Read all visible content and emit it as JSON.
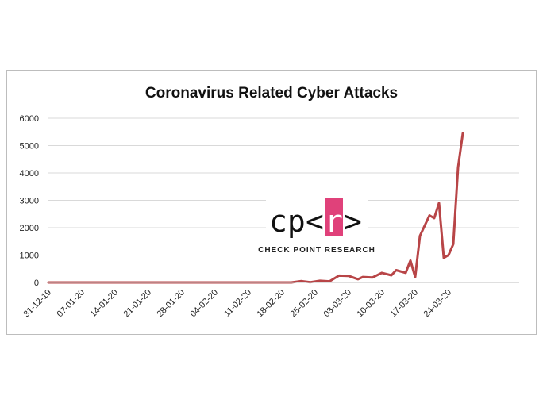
{
  "chart_data": {
    "type": "line",
    "title": "Coronavirus Related Cyber Attacks",
    "ylim": [
      0,
      6000
    ],
    "yticks": [
      "0",
      "1000",
      "2000",
      "3000",
      "4000",
      "5000",
      "6000"
    ],
    "xticks": [
      "31-12-19",
      "07-01-20",
      "14-01-20",
      "21-01-20",
      "28-01-20",
      "04-02-20",
      "11-02-20",
      "18-02-20",
      "25-02-20",
      "03-03-20",
      "10-03-20",
      "17-03-20",
      "24-03-20"
    ],
    "series": [
      {
        "color": "#b84547",
        "points": [
          [
            "31-12-19",
            0
          ],
          [
            "07-01-20",
            0
          ],
          [
            "14-01-20",
            0
          ],
          [
            "21-01-20",
            0
          ],
          [
            "28-01-20",
            0
          ],
          [
            "04-02-20",
            0
          ],
          [
            "11-02-20",
            0
          ],
          [
            "18-02-20",
            0
          ],
          [
            "20-02-20",
            0
          ],
          [
            "22-02-20",
            50
          ],
          [
            "24-02-20",
            10
          ],
          [
            "26-02-20",
            60
          ],
          [
            "28-02-20",
            40
          ],
          [
            "01-03-20",
            250
          ],
          [
            "03-03-20",
            240
          ],
          [
            "05-03-20",
            120
          ],
          [
            "06-03-20",
            200
          ],
          [
            "08-03-20",
            180
          ],
          [
            "10-03-20",
            350
          ],
          [
            "12-03-20",
            260
          ],
          [
            "13-03-20",
            450
          ],
          [
            "15-03-20",
            350
          ],
          [
            "16-03-20",
            800
          ],
          [
            "17-03-20",
            200
          ],
          [
            "18-03-20",
            1700
          ],
          [
            "20-03-20",
            2450
          ],
          [
            "21-03-20",
            2350
          ],
          [
            "22-03-20",
            2900
          ],
          [
            "23-03-20",
            900
          ],
          [
            "24-03-20",
            1000
          ],
          [
            "25-03-20",
            1400
          ],
          [
            "26-03-20",
            4200
          ],
          [
            "27-03-20",
            5450
          ]
        ]
      }
    ]
  },
  "logo": {
    "cp": "cp",
    "lt": "<",
    "r": "r",
    "gt": ">",
    "subtitle": "CHECK POINT RESEARCH",
    "accent_color": "#e0417a"
  }
}
